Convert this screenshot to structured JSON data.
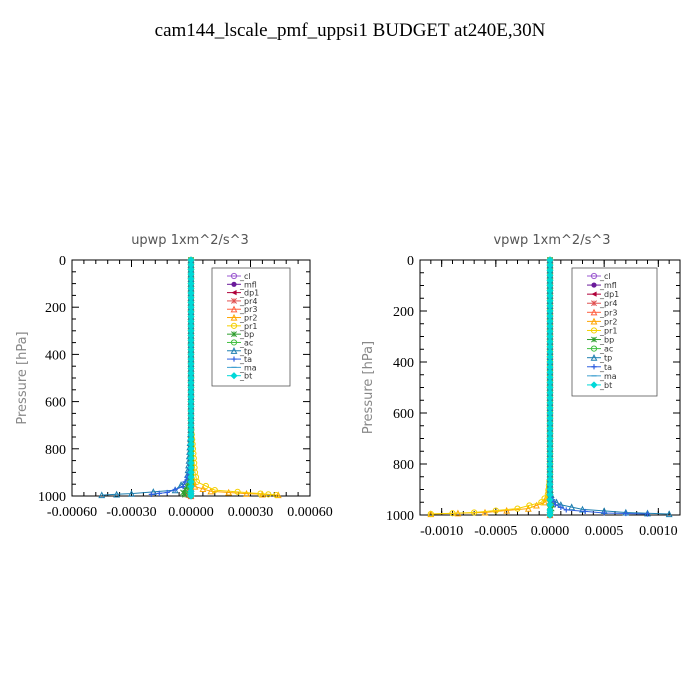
{
  "title": "cam144_lscale_pmf_uppsi1  BUDGET at240E,30N",
  "chart_data": [
    {
      "type": "line",
      "title": "upwp   1xm^2/s^3",
      "ylabel": "Pressure [hPa]",
      "xlim": [
        -0.0006,
        0.0006
      ],
      "ylim": [
        1000,
        0
      ],
      "xticks": [
        -0.0006,
        -0.0003,
        0.0,
        0.0003,
        0.0006
      ],
      "xtick_labels": [
        "-0.00060",
        "-0.00030",
        "0.00000",
        "0.00030",
        "0.00060"
      ],
      "yticks": [
        0,
        200,
        400,
        600,
        800,
        1000
      ],
      "ytick_labels": [
        "0",
        "200",
        "400",
        "600",
        "800",
        "1000"
      ],
      "legend_position": "top-right",
      "series": [
        {
          "name": "_cl",
          "color": "#9b59d0",
          "marker": "circle",
          "points": [
            [
              0,
              0
            ],
            [
              0,
              300
            ],
            [
              0,
              600
            ],
            [
              0,
              900
            ],
            [
              0,
              960
            ],
            [
              0,
              1000
            ]
          ]
        },
        {
          "name": "_mfl",
          "color": "#6a1b9a",
          "marker": "dot",
          "points": [
            [
              0,
              0
            ],
            [
              0,
              300
            ],
            [
              0,
              600
            ],
            [
              0,
              900
            ],
            [
              0,
              960
            ],
            [
              0,
              1000
            ]
          ]
        },
        {
          "name": "_dp1",
          "color": "#b0003a",
          "marker": "tri-left",
          "points": [
            [
              0,
              0
            ],
            [
              0,
              300
            ],
            [
              0,
              600
            ],
            [
              0,
              900
            ],
            [
              0,
              960
            ],
            [
              0,
              1000
            ]
          ]
        },
        {
          "name": "_pr4",
          "color": "#e05050",
          "marker": "star",
          "points": [
            [
              0,
              0
            ],
            [
              0,
              600
            ],
            [
              0,
              900
            ],
            [
              0,
              970
            ],
            [
              -2e-05,
              990
            ],
            [
              0,
              1000
            ]
          ]
        },
        {
          "name": "_pr3",
          "color": "#ff6040",
          "marker": "tri",
          "points": [
            [
              0,
              0
            ],
            [
              0,
              600
            ],
            [
              0,
              900
            ],
            [
              0,
              970
            ],
            [
              -2e-05,
              990
            ],
            [
              0,
              1000
            ]
          ]
        },
        {
          "name": "_pr2",
          "color": "#ffa500",
          "marker": "tri",
          "points": [
            [
              0,
              0
            ],
            [
              0,
              600
            ],
            [
              0,
              900
            ],
            [
              2e-05,
              960
            ],
            [
              0.0001,
              980
            ],
            [
              0.00028,
              990
            ],
            [
              0.00044,
              996
            ]
          ]
        },
        {
          "name": "_pr1",
          "color": "#f5d000",
          "marker": "circle",
          "points": [
            [
              0,
              0
            ],
            [
              0,
              700
            ],
            [
              1e-05,
              800
            ],
            [
              2e-05,
              900
            ],
            [
              3e-05,
              940
            ],
            [
              0.00012,
              975
            ],
            [
              0.00035,
              990
            ],
            [
              0.00043,
              996
            ]
          ]
        },
        {
          "name": "_bp",
          "color": "#2e9e2e",
          "marker": "star",
          "points": [
            [
              0,
              0
            ],
            [
              0,
              900
            ],
            [
              -2e-05,
              960
            ],
            [
              -4e-05,
              985
            ],
            [
              -3e-05,
              995
            ]
          ]
        },
        {
          "name": "_ac",
          "color": "#40c040",
          "marker": "circle",
          "points": [
            [
              0,
              0
            ],
            [
              0,
              900
            ],
            [
              0,
              950
            ],
            [
              -1e-05,
              980
            ],
            [
              0,
              1000
            ]
          ]
        },
        {
          "name": "_tp",
          "color": "#1e7fb0",
          "marker": "tri",
          "points": [
            [
              0,
              0
            ],
            [
              0,
              700
            ],
            [
              -1e-05,
              850
            ],
            [
              -2e-05,
              930
            ],
            [
              -8e-05,
              975
            ],
            [
              -0.0003,
              990
            ],
            [
              -0.00045,
              996
            ]
          ]
        },
        {
          "name": "_ta",
          "color": "#3060e0",
          "marker": "plus",
          "points": [
            [
              0,
              0
            ],
            [
              0,
              800
            ],
            [
              -1e-05,
              900
            ],
            [
              -4e-05,
              960
            ],
            [
              -0.00012,
              985
            ],
            [
              -0.0002,
              993
            ]
          ]
        },
        {
          "name": "_ma",
          "color": "#40a0d0",
          "marker": "dash",
          "points": [
            [
              0,
              0
            ],
            [
              0,
              900
            ],
            [
              0,
              980
            ],
            [
              0,
              1000
            ]
          ]
        },
        {
          "name": "_bt",
          "color": "#00d8d8",
          "marker": "diamond",
          "points": [
            [
              0,
              0
            ],
            [
              0,
              900
            ],
            [
              0,
              980
            ],
            [
              0,
              1000
            ]
          ]
        }
      ]
    },
    {
      "type": "line",
      "title": "vpwp   1xm^2/s^3",
      "ylabel": "Pressure [hPa]",
      "xlim": [
        -0.0012,
        0.0012
      ],
      "ylim": [
        1000,
        0
      ],
      "xticks": [
        -0.001,
        -0.0005,
        0.0,
        0.0005,
        0.001
      ],
      "xtick_labels": [
        "-0.0010",
        "-0.0005",
        "0.0000",
        "0.0005",
        "0.0010"
      ],
      "yticks": [
        0,
        200,
        400,
        600,
        800,
        1000
      ],
      "ytick_labels": [
        "0",
        "200",
        "400",
        "600",
        "800",
        "1000"
      ],
      "legend_position": "top-right",
      "series": [
        {
          "name": "_cl",
          "color": "#9b59d0",
          "marker": "circle",
          "points": [
            [
              0,
              0
            ],
            [
              0,
              300
            ],
            [
              0,
              600
            ],
            [
              0,
              900
            ],
            [
              0,
              960
            ],
            [
              0,
              1000
            ]
          ]
        },
        {
          "name": "_mfl",
          "color": "#6a1b9a",
          "marker": "dot",
          "points": [
            [
              0,
              0
            ],
            [
              0,
              300
            ],
            [
              0,
              600
            ],
            [
              0,
              900
            ],
            [
              0,
              960
            ],
            [
              0,
              1000
            ]
          ]
        },
        {
          "name": "_dp1",
          "color": "#b0003a",
          "marker": "tri-left",
          "points": [
            [
              0,
              0
            ],
            [
              0,
              300
            ],
            [
              0,
              600
            ],
            [
              0,
              900
            ],
            [
              0,
              960
            ],
            [
              0,
              1000
            ]
          ]
        },
        {
          "name": "_pr4",
          "color": "#e05050",
          "marker": "star",
          "points": [
            [
              0,
              0
            ],
            [
              0,
              900
            ],
            [
              0,
              970
            ],
            [
              0,
              1000
            ]
          ]
        },
        {
          "name": "_pr3",
          "color": "#ff6040",
          "marker": "tri",
          "points": [
            [
              0,
              0
            ],
            [
              0,
              900
            ],
            [
              0,
              970
            ],
            [
              0,
              1000
            ]
          ]
        },
        {
          "name": "_pr2",
          "color": "#ffa500",
          "marker": "tri",
          "points": [
            [
              0,
              0
            ],
            [
              0,
              850
            ],
            [
              -2e-05,
              920
            ],
            [
              -5e-05,
              950
            ],
            [
              -0.0002,
              975
            ],
            [
              -0.0006,
              990
            ],
            [
              -0.0011,
              996
            ]
          ]
        },
        {
          "name": "_pr1",
          "color": "#f5d000",
          "marker": "circle",
          "points": [
            [
              0,
              0
            ],
            [
              0,
              850
            ],
            [
              -2e-05,
              920
            ],
            [
              -8e-05,
              950
            ],
            [
              -0.0003,
              975
            ],
            [
              -0.0007,
              990
            ],
            [
              -0.0011,
              996
            ]
          ]
        },
        {
          "name": "_bp",
          "color": "#2e9e2e",
          "marker": "star",
          "points": [
            [
              0,
              0
            ],
            [
              0,
              900
            ],
            [
              2e-05,
              960
            ],
            [
              1e-05,
              990
            ]
          ]
        },
        {
          "name": "_ac",
          "color": "#40c040",
          "marker": "circle",
          "points": [
            [
              0,
              0
            ],
            [
              0,
              900
            ],
            [
              0,
              960
            ],
            [
              0,
              1000
            ]
          ]
        },
        {
          "name": "_tp",
          "color": "#1e7fb0",
          "marker": "tri",
          "points": [
            [
              0,
              0
            ],
            [
              0,
              900
            ],
            [
              2e-05,
              940
            ],
            [
              0.0001,
              960
            ],
            [
              0.0003,
              978
            ],
            [
              0.0007,
              990
            ],
            [
              0.0011,
              996
            ]
          ]
        },
        {
          "name": "_ta",
          "color": "#3060e0",
          "marker": "plus",
          "points": [
            [
              0,
              0
            ],
            [
              0,
              920
            ],
            [
              5e-05,
              960
            ],
            [
              0.00015,
              980
            ],
            [
              0.0005,
              992
            ],
            [
              0.0009,
              996
            ]
          ]
        },
        {
          "name": "_ma",
          "color": "#40a0d0",
          "marker": "dash",
          "points": [
            [
              0,
              0
            ],
            [
              0,
              900
            ],
            [
              0,
              980
            ],
            [
              0,
              1000
            ]
          ]
        },
        {
          "name": "_bt",
          "color": "#00d8d8",
          "marker": "diamond",
          "points": [
            [
              0,
              0
            ],
            [
              0,
              900
            ],
            [
              0,
              980
            ],
            [
              0,
              1000
            ]
          ]
        }
      ]
    }
  ]
}
